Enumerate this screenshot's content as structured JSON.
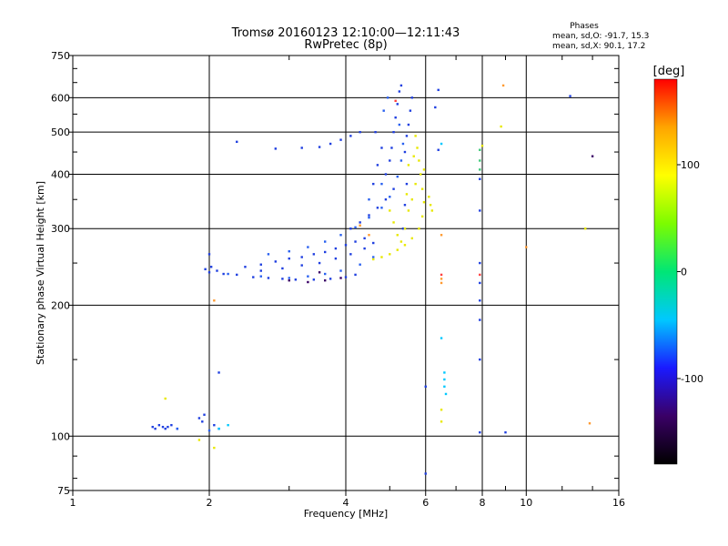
{
  "chart_data": {
    "type": "scatter",
    "title": "Tromsø 20160123 12:10:00—12:11:43",
    "subtitle": "RwPretec (8p)",
    "xlabel": "Frequency [MHz]",
    "ylabel": "Stationary phase Virtual Height [km]",
    "x_scale": "log",
    "y_scale": "log",
    "xlim": [
      1,
      16
    ],
    "ylim": [
      75,
      750
    ],
    "x_ticks": [
      1,
      2,
      4,
      6,
      8,
      10,
      16
    ],
    "y_ticks": [
      75,
      100,
      200,
      300,
      400,
      500,
      600,
      750
    ],
    "grid": true,
    "stats": {
      "header": "Phases",
      "line_o": "mean, sd,O: -91.7, 15.3",
      "line_x": "mean, sd,X:  90.1, 17.2"
    },
    "colorbar": {
      "label": "[deg]",
      "range": [
        -180,
        180
      ],
      "ticks": [
        100,
        0,
        -100
      ],
      "stops": [
        "#000000",
        "#3a0066",
        "#1a1aff",
        "#00c8ff",
        "#00e676",
        "#7cfc00",
        "#ffff00",
        "#ffa500",
        "#ff0000"
      ]
    },
    "series": [
      {
        "color": "#1f3fe0",
        "points": [
          [
            1.5,
            105
          ],
          [
            1.52,
            104
          ],
          [
            1.55,
            106
          ],
          [
            1.58,
            105
          ],
          [
            1.6,
            104
          ],
          [
            1.62,
            105
          ],
          [
            1.65,
            106
          ],
          [
            1.7,
            104
          ],
          [
            1.9,
            110
          ],
          [
            1.95,
            112
          ],
          [
            1.93,
            108
          ],
          [
            2.05,
            106
          ],
          [
            1.96,
            242
          ],
          [
            2.0,
            238
          ],
          [
            2.02,
            245
          ],
          [
            2.08,
            240
          ],
          [
            2.15,
            236
          ],
          [
            2.3,
            235
          ],
          [
            2.5,
            232
          ],
          [
            2.7,
            231
          ],
          [
            2.9,
            230
          ],
          [
            3.1,
            229
          ],
          [
            3.4,
            229
          ],
          [
            3.7,
            230
          ],
          [
            4.0,
            232
          ],
          [
            4.2,
            235
          ],
          [
            2.4,
            245
          ],
          [
            2.6,
            248
          ],
          [
            2.8,
            252
          ],
          [
            3.0,
            256
          ],
          [
            3.2,
            258
          ],
          [
            3.4,
            262
          ],
          [
            3.6,
            265
          ],
          [
            3.8,
            270
          ],
          [
            4.0,
            275
          ],
          [
            4.2,
            280
          ],
          [
            4.4,
            285
          ],
          [
            2.6,
            240
          ],
          [
            2.9,
            243
          ],
          [
            3.2,
            247
          ],
          [
            3.5,
            250
          ],
          [
            3.8,
            256
          ],
          [
            4.1,
            262
          ],
          [
            4.4,
            270
          ],
          [
            4.6,
            278
          ],
          [
            4.1,
            300
          ],
          [
            4.3,
            310
          ],
          [
            4.5,
            322
          ],
          [
            4.7,
            335
          ],
          [
            4.9,
            350
          ],
          [
            5.1,
            370
          ],
          [
            4.9,
            400
          ],
          [
            5.0,
            430
          ],
          [
            5.05,
            460
          ],
          [
            5.1,
            500
          ],
          [
            5.15,
            540
          ],
          [
            5.2,
            580
          ],
          [
            5.25,
            620
          ],
          [
            5.3,
            640
          ],
          [
            4.6,
            380
          ],
          [
            4.7,
            420
          ],
          [
            4.8,
            460
          ],
          [
            4.65,
            500
          ],
          [
            5.4,
            450
          ],
          [
            5.45,
            490
          ],
          [
            5.5,
            520
          ],
          [
            5.55,
            560
          ],
          [
            5.6,
            600
          ],
          [
            5.35,
            300
          ],
          [
            5.4,
            340
          ],
          [
            5.45,
            380
          ],
          [
            3.2,
            460
          ],
          [
            3.5,
            462
          ],
          [
            3.7,
            470
          ],
          [
            3.9,
            480
          ],
          [
            4.1,
            490
          ],
          [
            4.3,
            500
          ],
          [
            2.3,
            475
          ],
          [
            2.8,
            458
          ],
          [
            2.0,
            262
          ],
          [
            7.9,
            390
          ],
          [
            7.9,
            330
          ],
          [
            7.9,
            250
          ],
          [
            7.9,
            225
          ],
          [
            7.9,
            205
          ],
          [
            7.9,
            185
          ],
          [
            7.9,
            150
          ],
          [
            7.9,
            102
          ],
          [
            6.0,
            130
          ],
          [
            6.0,
            82
          ],
          [
            6.4,
            455
          ],
          [
            6.4,
            625
          ],
          [
            6.3,
            570
          ],
          [
            9.0,
            102
          ],
          [
            12.5,
            605
          ],
          [
            2.1,
            140
          ]
        ]
      },
      {
        "color": "#2860f0",
        "points": [
          [
            1.7,
            104
          ],
          [
            2.0,
            103
          ],
          [
            2.1,
            104
          ],
          [
            2.2,
            236
          ],
          [
            2.6,
            233
          ],
          [
            3.0,
            231
          ],
          [
            3.3,
            233
          ],
          [
            3.6,
            236
          ],
          [
            3.9,
            240
          ],
          [
            4.3,
            248
          ],
          [
            4.6,
            258
          ],
          [
            2.7,
            262
          ],
          [
            3.0,
            266
          ],
          [
            3.3,
            272
          ],
          [
            3.6,
            280
          ],
          [
            3.9,
            290
          ],
          [
            4.2,
            302
          ],
          [
            4.5,
            318
          ],
          [
            4.8,
            335
          ],
          [
            5.0,
            355
          ],
          [
            5.2,
            395
          ],
          [
            5.3,
            430
          ],
          [
            5.35,
            470
          ],
          [
            4.85,
            560
          ],
          [
            4.95,
            600
          ],
          [
            4.5,
            350
          ],
          [
            4.8,
            380
          ],
          [
            5.25,
            520
          ]
        ]
      },
      {
        "color": "#3a0066",
        "points": [
          [
            3.0,
            228
          ],
          [
            3.3,
            226
          ],
          [
            3.6,
            228
          ],
          [
            3.9,
            231
          ],
          [
            3.5,
            238
          ],
          [
            14.0,
            440
          ]
        ]
      },
      {
        "color": "#00c8ff",
        "points": [
          [
            6.5,
            470
          ],
          [
            6.5,
            168
          ],
          [
            6.6,
            140
          ],
          [
            6.6,
            135
          ],
          [
            6.6,
            130
          ],
          [
            6.65,
            125
          ],
          [
            2.1,
            104
          ],
          [
            2.2,
            106
          ]
        ]
      },
      {
        "color": "#3cc878",
        "points": [
          [
            7.9,
            430
          ],
          [
            7.9,
            455
          ],
          [
            7.9,
            410
          ]
        ]
      },
      {
        "color": "#e8e800",
        "points": [
          [
            4.6,
            255
          ],
          [
            4.8,
            258
          ],
          [
            5.0,
            262
          ],
          [
            5.2,
            268
          ],
          [
            5.4,
            275
          ],
          [
            5.6,
            285
          ],
          [
            5.8,
            300
          ],
          [
            5.9,
            320
          ],
          [
            5.95,
            345
          ],
          [
            5.9,
            370
          ],
          [
            5.85,
            400
          ],
          [
            5.8,
            430
          ],
          [
            5.75,
            460
          ],
          [
            5.7,
            490
          ],
          [
            5.5,
            330
          ],
          [
            5.4,
            300
          ],
          [
            5.3,
            280
          ],
          [
            5.6,
            350
          ],
          [
            5.7,
            380
          ],
          [
            5.2,
            290
          ],
          [
            5.1,
            310
          ],
          [
            5.5,
            420
          ],
          [
            6.1,
            355
          ],
          [
            6.15,
            340
          ],
          [
            6.2,
            330
          ],
          [
            5.95,
            410
          ],
          [
            5.65,
            440
          ],
          [
            5.45,
            360
          ],
          [
            1.6,
            122
          ],
          [
            1.9,
            98
          ],
          [
            2.05,
            94
          ],
          [
            6.5,
            108
          ],
          [
            6.5,
            115
          ],
          [
            8.0,
            465
          ],
          [
            8.8,
            515
          ],
          [
            13.5,
            300
          ],
          [
            5.0,
            330
          ]
        ]
      },
      {
        "color": "#ff9a30",
        "points": [
          [
            6.5,
            290
          ],
          [
            6.5,
            230
          ],
          [
            6.5,
            225
          ],
          [
            8.9,
            640
          ],
          [
            10.0,
            272
          ],
          [
            13.8,
            107
          ],
          [
            4.5,
            290
          ],
          [
            4.3,
            305
          ],
          [
            2.05,
            205
          ]
        ]
      },
      {
        "color": "#ff4040",
        "points": [
          [
            6.5,
            235
          ],
          [
            7.9,
            235
          ],
          [
            5.15,
            590
          ]
        ]
      }
    ]
  }
}
